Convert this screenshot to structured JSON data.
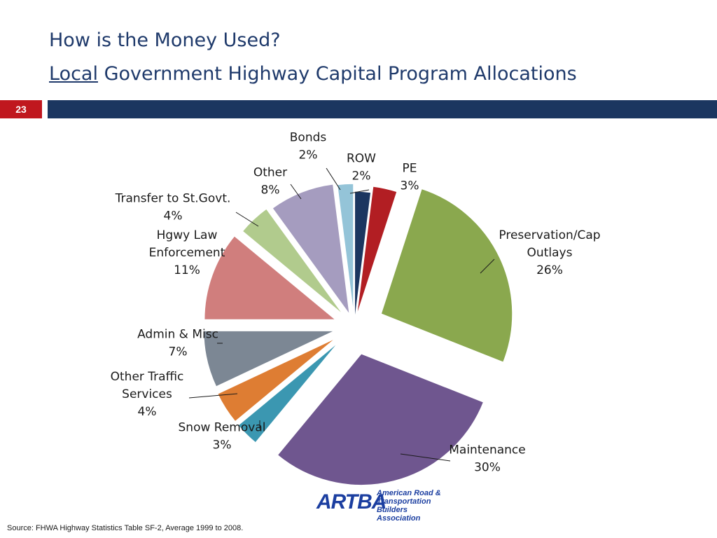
{
  "slide": {
    "title_line1": "How is the Money Used?",
    "title_line2_underlined": "Local",
    "title_line2_rest": " Government Highway Capital Program Allocations",
    "slide_number": "23",
    "source": "Source: FHWA Highway Statistics Table SF-2, Average 1999 to 2008.",
    "logo": {
      "mark": "ARTBA",
      "line1": "American Road &",
      "line2": "Transportation Builders",
      "line3": "Association"
    }
  },
  "chart_data": {
    "type": "pie",
    "exploded": true,
    "start": "top, clockwise",
    "slices": [
      {
        "label": [
          "ROW"
        ],
        "value": 2,
        "value_label": "2%",
        "color": "#1b3660"
      },
      {
        "label": [
          "PE"
        ],
        "value": 3,
        "value_label": "3%",
        "color": "#b21e23"
      },
      {
        "label": [
          "Preservation/Cap",
          "Outlays"
        ],
        "value": 26,
        "value_label": "26%",
        "color": "#8aa84e"
      },
      {
        "label": [
          "Maintenance"
        ],
        "value": 30,
        "value_label": "30%",
        "color": "#6f568f"
      },
      {
        "label": [
          "Snow Removal"
        ],
        "value": 3,
        "value_label": "3%",
        "color": "#3b97b1"
      },
      {
        "label": [
          "Other Traffic",
          "Services"
        ],
        "value": 4,
        "value_label": "4%",
        "color": "#de7d33"
      },
      {
        "label": [
          "Admin & Misc"
        ],
        "value": 7,
        "value_label": "7%",
        "color": "#7c8794"
      },
      {
        "label": [
          "Hgwy Law",
          "Enforcement"
        ],
        "value": 11,
        "value_label": "11%",
        "color": "#d07e7d"
      },
      {
        "label": [
          "Transfer to St.Govt."
        ],
        "value": 4,
        "value_label": "4%",
        "color": "#b1cb8d"
      },
      {
        "label": [
          "Other"
        ],
        "value": 8,
        "value_label": "8%",
        "color": "#a59cbf"
      },
      {
        "label": [
          "Bonds"
        ],
        "value": 2,
        "value_label": "2%",
        "color": "#94c4d8"
      }
    ]
  }
}
